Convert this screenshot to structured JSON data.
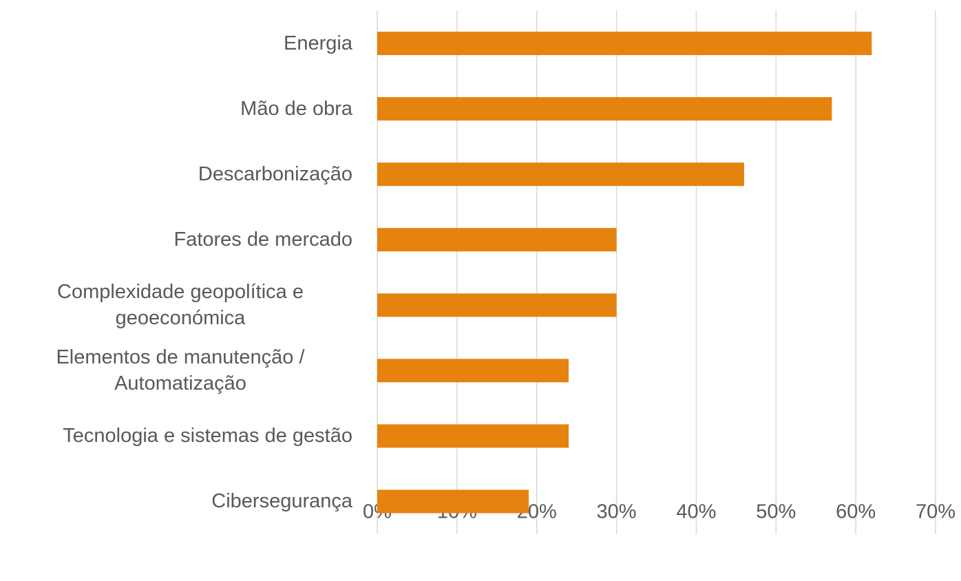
{
  "chart_data": {
    "type": "bar",
    "orientation": "horizontal",
    "categories": [
      "Energia",
      "Mão de obra",
      "Descarbonização",
      "Fatores de mercado",
      "Complexidade geopolítica e geoeconómica",
      "Elementos de manutenção / Automatização",
      "Tecnologia e sistemas de gestão",
      "Cibersegurança"
    ],
    "values": [
      62,
      57,
      46,
      30,
      30,
      24,
      24,
      19
    ],
    "color": "#e6820e",
    "xlim": [
      0,
      70
    ],
    "xticks": [
      {
        "value": 0,
        "label": "0%"
      },
      {
        "value": 10,
        "label": "10%"
      },
      {
        "value": 20,
        "label": "20%"
      },
      {
        "value": 30,
        "label": "30%"
      },
      {
        "value": 40,
        "label": "40%"
      },
      {
        "value": 50,
        "label": "50%"
      },
      {
        "value": 60,
        "label": "60%"
      },
      {
        "value": 70,
        "label": "70%"
      }
    ],
    "grid": true
  }
}
